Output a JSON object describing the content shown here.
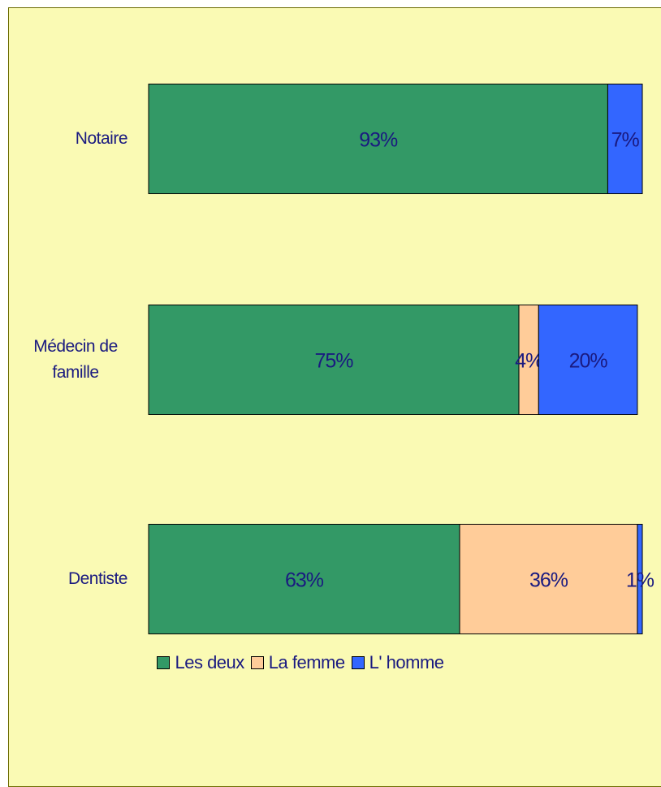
{
  "chart_data": {
    "type": "stacked-bar-horizontal",
    "categories": [
      "Notaire",
      "Médecin de famille",
      "Dentiste"
    ],
    "series": [
      {
        "name": "Les deux",
        "color": "#339966",
        "values": [
          93,
          75,
          63
        ],
        "value_labels": [
          "93%",
          "75%",
          "63%"
        ]
      },
      {
        "name": "La femme",
        "color": "#ffcc99",
        "values": [
          null,
          4,
          36
        ],
        "value_labels": [
          null,
          "4%",
          "36%"
        ]
      },
      {
        "name": "L' homme",
        "color": "#3366ff",
        "values": [
          7,
          20,
          1
        ],
        "value_labels": [
          "7%",
          "20%",
          "1%"
        ]
      }
    ],
    "legend": "bottom"
  }
}
